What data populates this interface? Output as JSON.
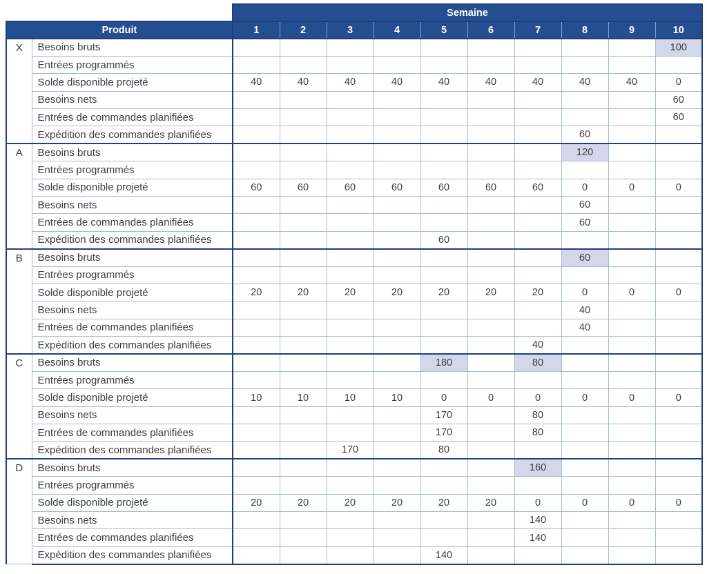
{
  "table": {
    "semaine_label": "Semaine",
    "produit_label": "Produit",
    "weeks": [
      "1",
      "2",
      "3",
      "4",
      "5",
      "6",
      "7",
      "8",
      "9",
      "10"
    ],
    "row_labels": [
      "Besoins bruts",
      "Entrées programmés",
      "Solde disponible projeté",
      "Besoins nets",
      "Entrées de commandes planifiées",
      "Expédition des commandes planifiées"
    ],
    "products": [
      {
        "code": "X",
        "rows": [
          [
            "",
            "",
            "",
            "",
            "",
            "",
            "",
            "",
            "",
            "100"
          ],
          [
            "",
            "",
            "",
            "",
            "",
            "",
            "",
            "",
            "",
            ""
          ],
          [
            "40",
            "40",
            "40",
            "40",
            "40",
            "40",
            "40",
            "40",
            "40",
            "0"
          ],
          [
            "",
            "",
            "",
            "",
            "",
            "",
            "",
            "",
            "",
            "60"
          ],
          [
            "",
            "",
            "",
            "",
            "",
            "",
            "",
            "",
            "",
            "60"
          ],
          [
            "",
            "",
            "",
            "",
            "",
            "",
            "",
            "60",
            "",
            ""
          ]
        ],
        "highlights": [
          [
            0,
            9
          ]
        ]
      },
      {
        "code": "A",
        "rows": [
          [
            "",
            "",
            "",
            "",
            "",
            "",
            "",
            "120",
            "",
            ""
          ],
          [
            "",
            "",
            "",
            "",
            "",
            "",
            "",
            "",
            "",
            ""
          ],
          [
            "60",
            "60",
            "60",
            "60",
            "60",
            "60",
            "60",
            "0",
            "0",
            "0"
          ],
          [
            "",
            "",
            "",
            "",
            "",
            "",
            "",
            "60",
            "",
            ""
          ],
          [
            "",
            "",
            "",
            "",
            "",
            "",
            "",
            "60",
            "",
            ""
          ],
          [
            "",
            "",
            "",
            "",
            "60",
            "",
            "",
            "",
            "",
            ""
          ]
        ],
        "highlights": [
          [
            0,
            7
          ]
        ]
      },
      {
        "code": "B",
        "rows": [
          [
            "",
            "",
            "",
            "",
            "",
            "",
            "",
            "60",
            "",
            ""
          ],
          [
            "",
            "",
            "",
            "",
            "",
            "",
            "",
            "",
            "",
            ""
          ],
          [
            "20",
            "20",
            "20",
            "20",
            "20",
            "20",
            "20",
            "0",
            "0",
            "0"
          ],
          [
            "",
            "",
            "",
            "",
            "",
            "",
            "",
            "40",
            "",
            ""
          ],
          [
            "",
            "",
            "",
            "",
            "",
            "",
            "",
            "40",
            "",
            ""
          ],
          [
            "",
            "",
            "",
            "",
            "",
            "",
            "40",
            "",
            "",
            ""
          ]
        ],
        "highlights": [
          [
            0,
            7
          ]
        ]
      },
      {
        "code": "C",
        "rows": [
          [
            "",
            "",
            "",
            "",
            "180",
            "",
            "80",
            "",
            "",
            ""
          ],
          [
            "",
            "",
            "",
            "",
            "",
            "",
            "",
            "",
            "",
            ""
          ],
          [
            "10",
            "10",
            "10",
            "10",
            "0",
            "0",
            "0",
            "0",
            "0",
            "0"
          ],
          [
            "",
            "",
            "",
            "",
            "170",
            "",
            "80",
            "",
            "",
            ""
          ],
          [
            "",
            "",
            "",
            "",
            "170",
            "",
            "80",
            "",
            "",
            ""
          ],
          [
            "",
            "",
            "170",
            "",
            "80",
            "",
            "",
            "",
            "",
            ""
          ]
        ],
        "highlights": [
          [
            0,
            4
          ],
          [
            0,
            6
          ]
        ]
      },
      {
        "code": "D",
        "rows": [
          [
            "",
            "",
            "",
            "",
            "",
            "",
            "160",
            "",
            "",
            ""
          ],
          [
            "",
            "",
            "",
            "",
            "",
            "",
            "",
            "",
            "",
            ""
          ],
          [
            "20",
            "20",
            "20",
            "20",
            "20",
            "20",
            "0",
            "0",
            "0",
            "0"
          ],
          [
            "",
            "",
            "",
            "",
            "",
            "",
            "140",
            "",
            "",
            ""
          ],
          [
            "",
            "",
            "",
            "",
            "",
            "",
            "140",
            "",
            "",
            ""
          ],
          [
            "",
            "",
            "",
            "",
            "140",
            "",
            "",
            "",
            "",
            ""
          ]
        ],
        "highlights": [
          [
            0,
            6
          ]
        ]
      }
    ]
  },
  "colors": {
    "header_bg": "#254e90",
    "thick_border": "#1d3f7d",
    "thin_border": "#a4bad6",
    "highlight_bg": "#d4d7e9",
    "text": "#3d3d3d",
    "header_text": "#ffffff"
  }
}
